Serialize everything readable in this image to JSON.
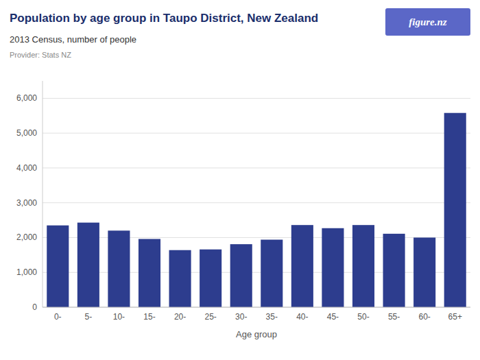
{
  "chart_data": {
    "type": "bar",
    "title": "Population by age group in Taupo District, New Zealand",
    "subtitle": "2013 Census, number of people",
    "annotations": [
      "Provider: Stats NZ",
      "figure.nz"
    ],
    "xlabel": "Age group",
    "categories": [
      "0-",
      "5-",
      "10-",
      "15-",
      "20-",
      "25-",
      "30-",
      "35-",
      "40-",
      "45-",
      "50-",
      "55-",
      "60-",
      "65+"
    ],
    "values": [
      2350,
      2430,
      2200,
      1960,
      1640,
      1660,
      1810,
      1940,
      2360,
      2270,
      2360,
      2110,
      2000,
      5580
    ],
    "color": "#2d3d8e",
    "ylim": [
      0,
      6500
    ],
    "yticks": [
      0,
      {
        "value": 1000,
        "label": "1,000"
      },
      {
        "value": 2000,
        "label": "2,000"
      },
      {
        "value": 3000,
        "label": "3,000"
      },
      {
        "value": 4000,
        "label": "4,000"
      },
      {
        "value": 5000,
        "label": "5,000"
      },
      {
        "value": 6000,
        "label": "6,000"
      }
    ],
    "grid": true
  }
}
